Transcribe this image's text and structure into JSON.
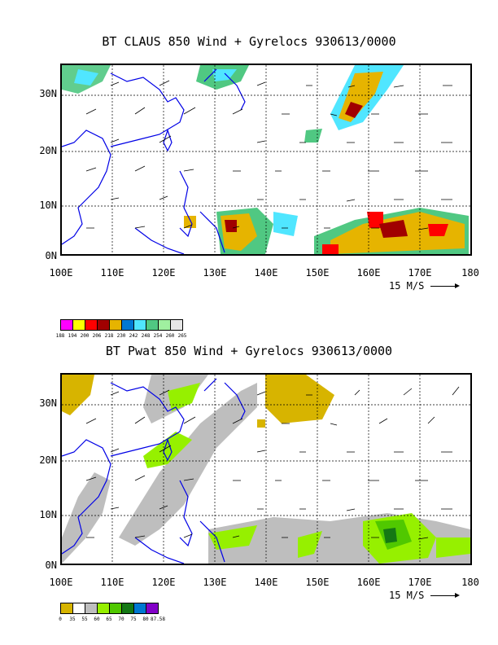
{
  "panel1": {
    "title": "BT CLAUS 850 Wind + Gyrelocs 930613/0000",
    "lat_labels": [
      "30N",
      "20N",
      "10N",
      "0N"
    ],
    "lon_labels": [
      "100E",
      "110E",
      "120E",
      "130E",
      "140E",
      "150E",
      "160E",
      "170E",
      "180"
    ],
    "scale_label": "15 M/S",
    "legend": {
      "colors": [
        "#ff00ff",
        "#ffff00",
        "#ff0000",
        "#a00000",
        "#e6b400",
        "#0078d2",
        "#50e6ff",
        "#50c882",
        "#a0f0a0",
        "#e6e6e6"
      ],
      "labels": [
        "188",
        "194",
        "200",
        "206",
        "218",
        "230",
        "242",
        "248",
        "254",
        "260",
        "265"
      ]
    }
  },
  "panel2": {
    "title": "BT Pwat 850 Wind + Gyrelocs 930613/0000",
    "lat_labels": [
      "30N",
      "20N",
      "10N",
      "0N"
    ],
    "lon_labels": [
      "100E",
      "110E",
      "120E",
      "130E",
      "140E",
      "150E",
      "160E",
      "170E",
      "180"
    ],
    "scale_label": "15 M/S",
    "legend": {
      "colors": [
        "#d7b400",
        "#ffffff",
        "#bebebe",
        "#96f000",
        "#50c800",
        "#147814",
        "#0078d2",
        "#8200c8"
      ],
      "labels": [
        "0",
        "35",
        "55",
        "60",
        "65",
        "70",
        "75",
        "80",
        "87.58"
      ]
    }
  }
}
